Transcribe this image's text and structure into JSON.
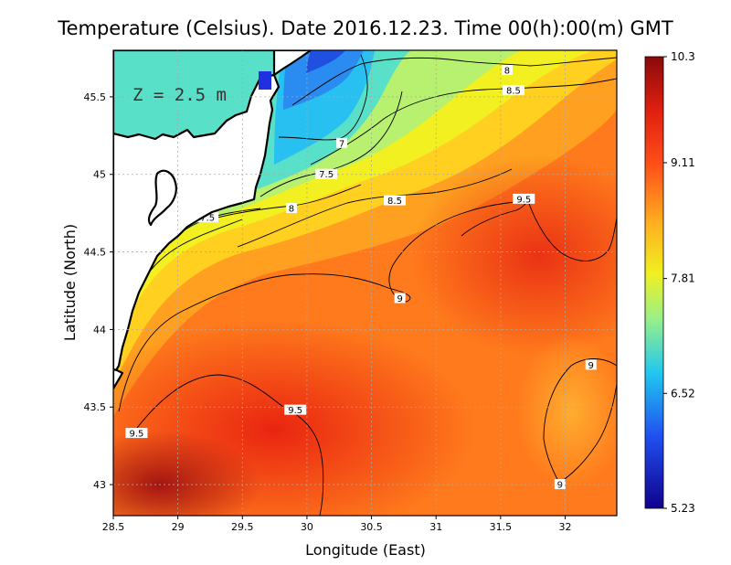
{
  "title": "Temperature (Celsius). Date 2016.12.23. Time 00(h):00(m) GMT",
  "depth_label": "Z = 2.5 m",
  "chart_data": {
    "type": "heatmap",
    "xlabel": "Longitude (East)",
    "ylabel": "Latitude (North)",
    "xlim": [
      28.5,
      32.4
    ],
    "ylim": [
      42.8,
      45.8
    ],
    "x_ticks": [
      "28.5",
      "29",
      "29.5",
      "30",
      "30.5",
      "31",
      "31.5",
      "32"
    ],
    "x_tick_values": [
      28.5,
      29,
      29.5,
      30,
      30.5,
      31,
      31.5,
      32
    ],
    "y_ticks": [
      "43",
      "43.5",
      "44",
      "44.5",
      "45",
      "45.5"
    ],
    "y_tick_values": [
      43,
      43.5,
      44,
      44.5,
      45,
      45.5
    ],
    "grid": true,
    "colorbar": {
      "min": 5.23,
      "max": 10.3,
      "tick_labels": [
        "10.3",
        "9.11",
        "7.81",
        "6.52",
        "5.23"
      ],
      "tick_values": [
        10.3,
        9.11,
        7.81,
        6.52,
        5.23
      ],
      "colormap": [
        "#10008c",
        "#2050f0",
        "#20c8f0",
        "#9af088",
        "#f0f020",
        "#ffb020",
        "#ff5018",
        "#e02010",
        "#8a0a0a"
      ]
    },
    "contour_labels": [
      {
        "text": "8",
        "lon": 31.55,
        "lat": 45.67
      },
      {
        "text": "8.5",
        "lon": 31.6,
        "lat": 45.54
      },
      {
        "text": "7",
        "lon": 30.27,
        "lat": 45.2
      },
      {
        "text": "7.5",
        "lon": 30.15,
        "lat": 45.0
      },
      {
        "text": "8.5",
        "lon": 30.68,
        "lat": 44.83
      },
      {
        "text": "8",
        "lon": 29.88,
        "lat": 44.78
      },
      {
        "text": "9.5",
        "lon": 31.68,
        "lat": 44.84
      },
      {
        "text": "7.5",
        "lon": 29.23,
        "lat": 44.72
      },
      {
        "text": "9",
        "lon": 30.72,
        "lat": 44.2
      },
      {
        "text": "9",
        "lon": 32.2,
        "lat": 43.77
      },
      {
        "text": "9.5",
        "lon": 29.91,
        "lat": 43.48
      },
      {
        "text": "9.5",
        "lon": 28.68,
        "lat": 43.33
      },
      {
        "text": "9",
        "lon": 31.96,
        "lat": 43.0
      }
    ]
  },
  "colors": {
    "land": "#ffffff",
    "coastline": "#000000",
    "gridline": "#a0a0a0",
    "contour": "#000000"
  }
}
